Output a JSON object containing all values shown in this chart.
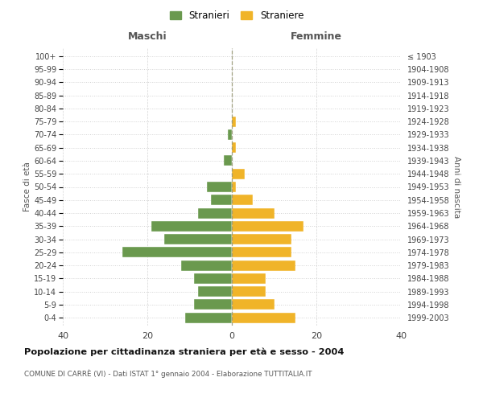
{
  "age_groups": [
    "0-4",
    "5-9",
    "10-14",
    "15-19",
    "20-24",
    "25-29",
    "30-34",
    "35-39",
    "40-44",
    "45-49",
    "50-54",
    "55-59",
    "60-64",
    "65-69",
    "70-74",
    "75-79",
    "80-84",
    "85-89",
    "90-94",
    "95-99",
    "100+"
  ],
  "birth_years": [
    "1999-2003",
    "1994-1998",
    "1989-1993",
    "1984-1988",
    "1979-1983",
    "1974-1978",
    "1969-1973",
    "1964-1968",
    "1959-1963",
    "1954-1958",
    "1949-1953",
    "1944-1948",
    "1939-1943",
    "1934-1938",
    "1929-1933",
    "1924-1928",
    "1919-1923",
    "1914-1918",
    "1909-1913",
    "1904-1908",
    "≤ 1903"
  ],
  "maschi": [
    11,
    9,
    8,
    9,
    12,
    26,
    16,
    19,
    8,
    5,
    6,
    0,
    2,
    0,
    1,
    0,
    0,
    0,
    0,
    0,
    0
  ],
  "femmine": [
    15,
    10,
    8,
    8,
    15,
    14,
    14,
    17,
    10,
    5,
    1,
    3,
    0,
    1,
    0,
    1,
    0,
    0,
    0,
    0,
    0
  ],
  "color_maschi": "#6a994e",
  "color_femmine": "#f0b429",
  "title": "Popolazione per cittadinanza straniera per età e sesso - 2004",
  "subtitle": "COMUNE DI CARRÈ (VI) - Dati ISTAT 1° gennaio 2004 - Elaborazione TUTTITALIA.IT",
  "xlabel_left": "Maschi",
  "xlabel_right": "Femmine",
  "ylabel_left": "Fasce di età",
  "ylabel_right": "Anni di nascita",
  "legend_maschi": "Stranieri",
  "legend_femmine": "Straniere",
  "xlim": 40,
  "background_color": "#ffffff",
  "grid_color": "#cccccc"
}
